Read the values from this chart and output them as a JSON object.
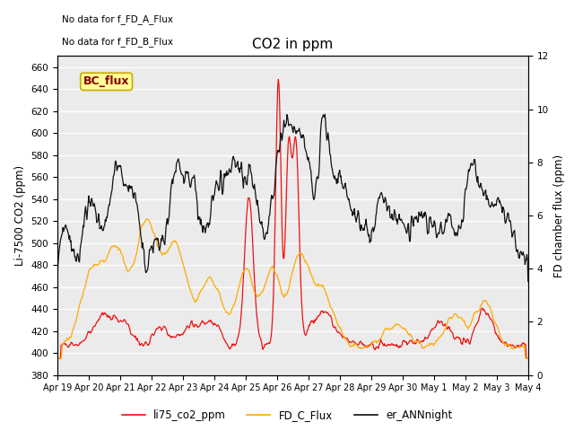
{
  "title": "CO2 in ppm",
  "ylabel_left": "Li-7500 CO2 (ppm)",
  "ylabel_right": "FD chamber flux (ppm)",
  "ylim_left": [
    380,
    670
  ],
  "ylim_right": [
    0,
    12
  ],
  "yticks_left": [
    380,
    400,
    420,
    440,
    460,
    480,
    500,
    520,
    540,
    560,
    580,
    600,
    620,
    640,
    660
  ],
  "yticks_right": [
    0,
    2,
    4,
    6,
    8,
    10,
    12
  ],
  "xtick_labels": [
    "Apr 19",
    "Apr 20",
    "Apr 21",
    "Apr 22",
    "Apr 23",
    "Apr 24",
    "Apr 25",
    "Apr 26",
    "Apr 27",
    "Apr 28",
    "Apr 29",
    "Apr 30",
    "May 1",
    "May 2",
    "May 3",
    "May 4"
  ],
  "text_ann1": "No data for f_FD_A_Flux",
  "text_ann2": "No data for f_FD_B_Flux",
  "legend_box_label": "BC_flux",
  "legend_box_color": "#ffff99",
  "legend_box_edge": "#ccaa00",
  "legend_items": [
    {
      "label": "li75_co2_ppm",
      "color": "#ee1111",
      "lw": 1.2
    },
    {
      "label": "FD_C_Flux",
      "color": "#ffaa00",
      "lw": 1.2
    },
    {
      "label": "er_ANNnight",
      "color": "#111111",
      "lw": 1.2
    }
  ],
  "color_red": "#ee1111",
  "color_orange": "#ffaa00",
  "color_black": "#111111",
  "bg_color": "#ebebeb",
  "grid_color": "#ffffff",
  "fig_width": 6.4,
  "fig_height": 4.8,
  "dpi": 100
}
